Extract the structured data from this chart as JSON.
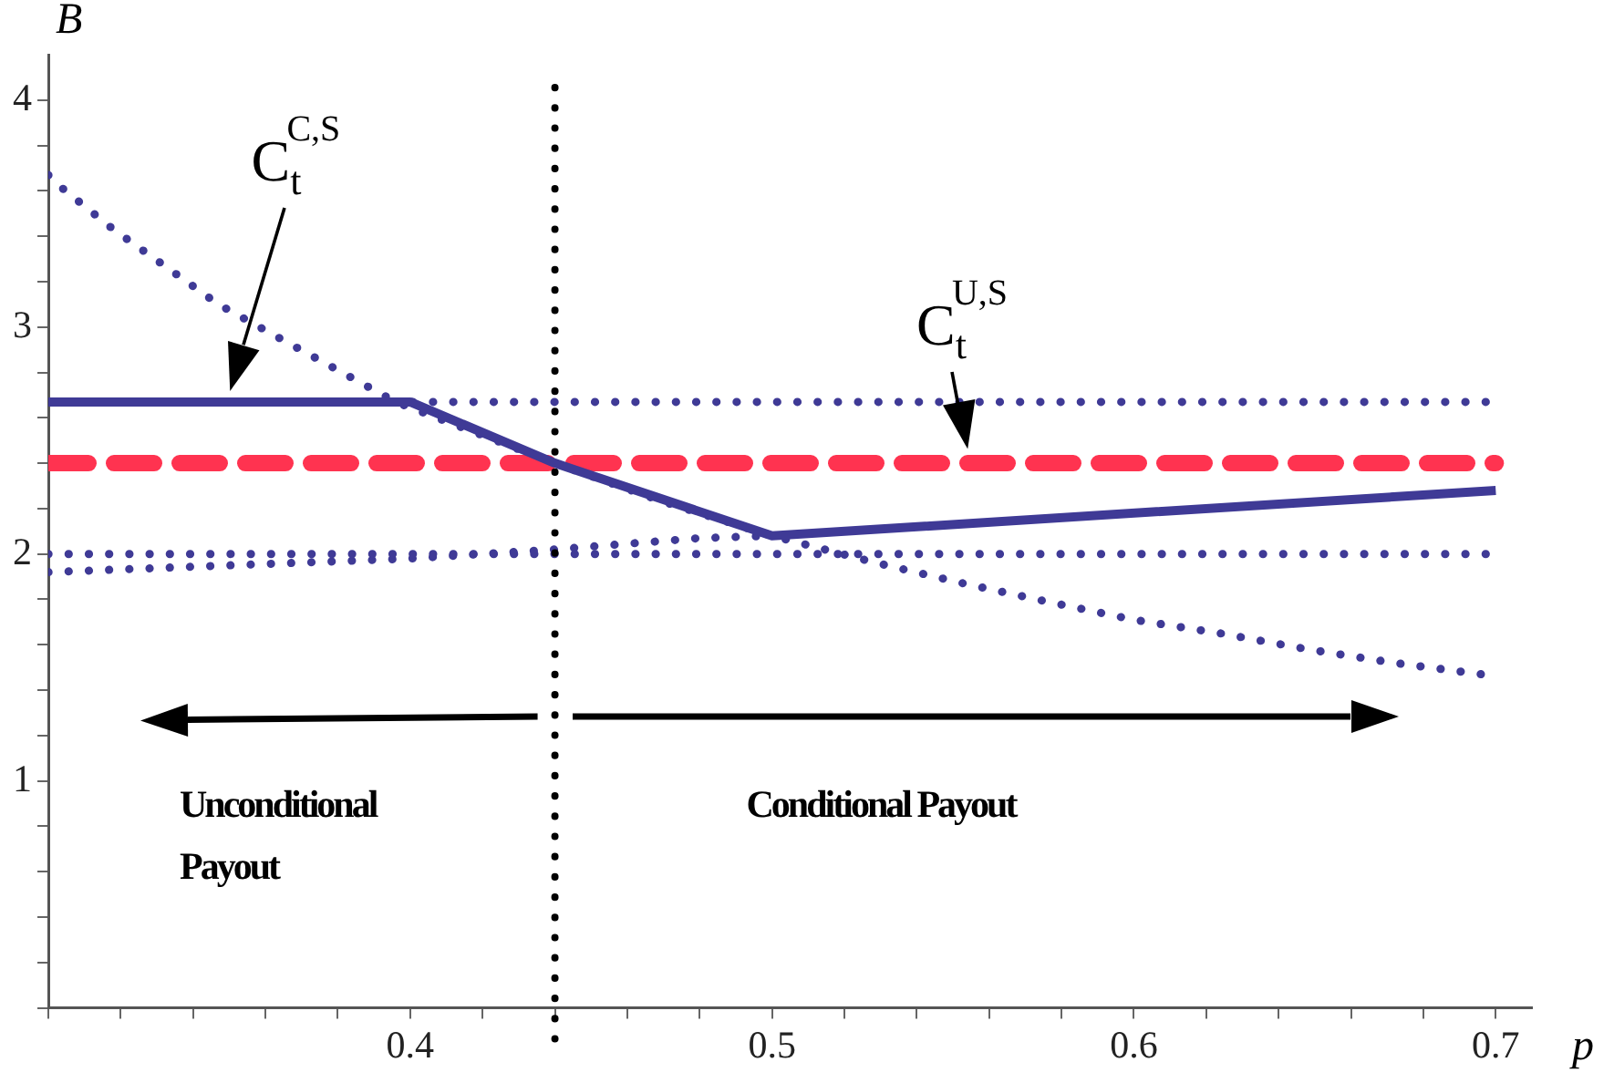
{
  "chart_data": {
    "type": "line",
    "xlabel": "p",
    "ylabel": "B",
    "xlim": [
      0.3,
      0.71
    ],
    "ylim": [
      0,
      4.2
    ],
    "xticks": [
      {
        "value": 0.3,
        "label": null
      },
      {
        "value": 0.32,
        "label": null
      },
      {
        "value": 0.34,
        "label": null
      },
      {
        "value": 0.36,
        "label": null
      },
      {
        "value": 0.38,
        "label": null
      },
      0.4,
      {
        "value": 0.42,
        "label": null
      },
      {
        "value": 0.44,
        "label": null
      },
      {
        "value": 0.46,
        "label": null
      },
      {
        "value": 0.48,
        "label": null
      },
      0.5,
      {
        "value": 0.52,
        "label": null
      },
      {
        "value": 0.54,
        "label": null
      },
      {
        "value": 0.56,
        "label": null
      },
      {
        "value": 0.58,
        "label": null
      },
      0.6,
      {
        "value": 0.62,
        "label": null
      },
      {
        "value": 0.64,
        "label": null
      },
      {
        "value": 0.66,
        "label": null
      },
      {
        "value": 0.68,
        "label": null
      },
      0.7
    ],
    "yticks": [
      {
        "value": 0,
        "label": null
      },
      {
        "value": 0.2,
        "label": null
      },
      {
        "value": 0.4,
        "label": null
      },
      {
        "value": 0.6,
        "label": null
      },
      {
        "value": 0.8,
        "label": null
      },
      1,
      {
        "value": 1.2,
        "label": null
      },
      {
        "value": 1.4,
        "label": null
      },
      {
        "value": 1.6,
        "label": null
      },
      {
        "value": 1.8,
        "label": null
      },
      2,
      {
        "value": 2.2,
        "label": null
      },
      {
        "value": 2.4,
        "label": null
      },
      {
        "value": 2.6,
        "label": null
      },
      {
        "value": 2.8,
        "label": null
      },
      3,
      {
        "value": 3.2,
        "label": null
      },
      {
        "value": 3.4,
        "label": null
      },
      {
        "value": 3.6,
        "label": null
      },
      {
        "value": 3.8,
        "label": null
      },
      4
    ],
    "grid": false,
    "legend": false,
    "marker": "none",
    "series": [
      {
        "type": "line",
        "color": "#3f3a96",
        "line_style": "solid",
        "x": [
          0.3,
          0.4,
          0.44,
          0.5,
          0.7
        ],
        "values": [
          2.67,
          2.67,
          2.4,
          2.08,
          2.28
        ]
      },
      {
        "type": "line",
        "color": "#ff3350",
        "line_style": "dashed",
        "x": [
          0.3,
          0.7
        ],
        "values": [
          2.4,
          2.4
        ]
      },
      {
        "type": "line",
        "color": "#3f3a96",
        "line_style": "dotted",
        "x": [
          0.3,
          0.304,
          0.318,
          0.333,
          0.347,
          0.364,
          0.38,
          0.396,
          0.44,
          0.47,
          0.5,
          0.529,
          0.553,
          0.576,
          0.6,
          0.624,
          0.648,
          0.672,
          0.696
        ],
        "values": [
          3.67,
          3.61,
          3.43,
          3.26,
          3.1,
          2.95,
          2.81,
          2.67,
          2.4,
          2.23,
          2.08,
          1.96,
          1.87,
          1.79,
          1.71,
          1.65,
          1.58,
          1.52,
          1.47
        ]
      },
      {
        "type": "line",
        "color": "#3f3a96",
        "line_style": "dotted",
        "x": [
          0.3,
          0.7
        ],
        "values": [
          2.67,
          2.67
        ]
      },
      {
        "type": "line",
        "color": "#3f3a96",
        "line_style": "dotted",
        "x": [
          0.3,
          0.7
        ],
        "values": [
          2.0,
          2.0
        ]
      },
      {
        "type": "line",
        "color": "#3f3a96",
        "line_style": "dotted",
        "x": [
          0.3,
          0.35,
          0.4,
          0.44,
          0.48,
          0.5
        ],
        "values": [
          1.92,
          1.95,
          1.98,
          2.02,
          2.07,
          2.08
        ]
      }
    ],
    "ref_lines": [
      {
        "axis": "x",
        "value": 0.44,
        "color": "#000000",
        "line_style": "dotted"
      }
    ],
    "annotations": [
      "C$_{t}$$^{C,S}$",
      {
        "text": "C$_{t}$$^{U,S}$",
        "x": 0.554,
        "y": 2.42
      },
      "Unconditional Payout",
      "Conditional Payout"
    ]
  }
}
